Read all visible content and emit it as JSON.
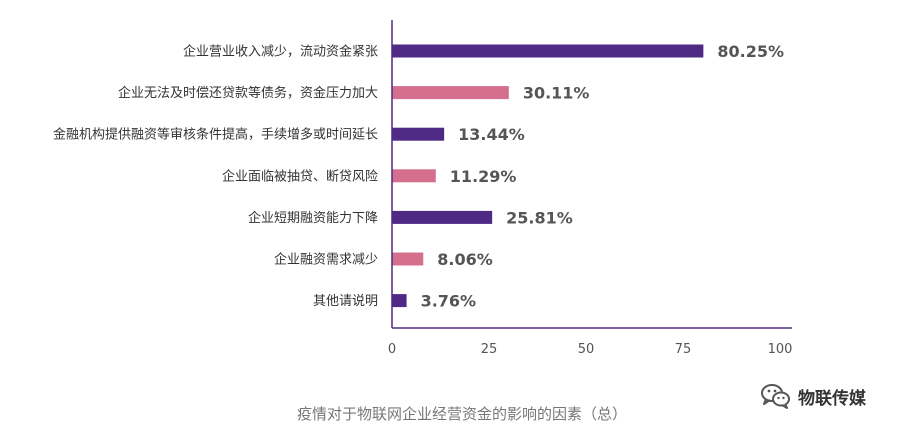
{
  "chart_data": {
    "type": "bar",
    "orientation": "horizontal",
    "categories": [
      "企业营业收入减少，流动资金紧张",
      "企业无法及时偿还贷款等债务，资金压力加大",
      "金融机构提供融资等审核条件提高，手续增多或时间延长",
      "企业面临被抽贷、断贷风险",
      "企业短期融资能力下降",
      "企业融资需求减少",
      "其他请说明"
    ],
    "values": [
      80.25,
      30.11,
      13.44,
      11.29,
      25.81,
      8.06,
      3.76
    ],
    "value_labels": [
      "80.25%",
      "30.11%",
      "13.44%",
      "11.29%",
      "25.81%",
      "8.06%",
      "3.76%"
    ],
    "bar_colors": [
      "#4e2a84",
      "#d4708e",
      "#4e2a84",
      "#d4708e",
      "#4e2a84",
      "#d4708e",
      "#4e2a84"
    ],
    "x_ticks": [
      "0",
      "25",
      "50",
      "75",
      "100"
    ],
    "xlim": [
      0,
      100
    ],
    "grid": false,
    "title": "",
    "xlabel": "",
    "ylabel": ""
  },
  "caption": "疫情对于物联网企业经营资金的影响的因素（总）",
  "watermark": {
    "icon": "wechat-icon",
    "text": "物联传媒"
  },
  "colors": {
    "axis": "#4e2a84",
    "purple": "#4e2a84",
    "pink": "#d4708e"
  }
}
